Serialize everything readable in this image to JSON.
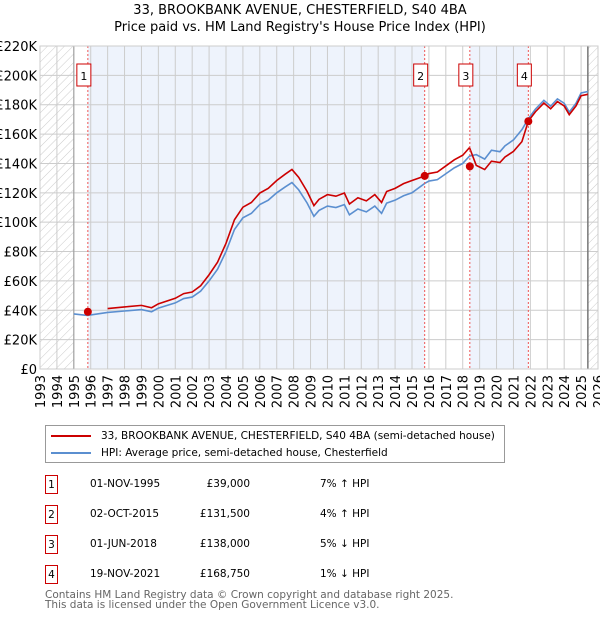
{
  "chart_data": {
    "type": "line",
    "title": "33, BROOKBANK AVENUE, CHESTERFIELD, S40 4BA",
    "subtitle": "Price paid vs. HM Land Registry's House Price Index (HPI)",
    "xlim": [
      1993,
      2026
    ],
    "ylim": [
      0,
      220000
    ],
    "x_ticks": [
      "1993",
      "1994",
      "1995",
      "1996",
      "1997",
      "1998",
      "1999",
      "2000",
      "2001",
      "2002",
      "2003",
      "2004",
      "2005",
      "2006",
      "2007",
      "2008",
      "2009",
      "2010",
      "2011",
      "2012",
      "2013",
      "2014",
      "2015",
      "2016",
      "2017",
      "2018",
      "2019",
      "2020",
      "2021",
      "2022",
      "2023",
      "2024",
      "2025",
      "2026"
    ],
    "y_ticks": [
      "£0",
      "£20K",
      "£40K",
      "£60K",
      "£80K",
      "£100K",
      "£120K",
      "£140K",
      "£160K",
      "£180K",
      "£200K",
      "£220K"
    ],
    "grid": true,
    "data_range": [
      1995.0,
      2025.4
    ],
    "hpi_series": {
      "name": "HPI: Average price, semi-detached house, Chesterfield",
      "color": "#5b8fd0",
      "x": [
        1995.0,
        1995.8,
        1997,
        1998,
        1999,
        1999.6,
        2000,
        2001,
        2001.5,
        2002,
        2002.5,
        2003,
        2003.5,
        2004,
        2004.5,
        2005,
        2005.5,
        2006,
        2006.5,
        2007,
        2007.5,
        2007.9,
        2008.3,
        2008.8,
        2009.2,
        2009.5,
        2010,
        2010.5,
        2011,
        2011.3,
        2011.8,
        2012.3,
        2012.8,
        2013.2,
        2013.5,
        2014,
        2014.5,
        2015,
        2015.75,
        2016,
        2016.5,
        2017,
        2017.5,
        2018,
        2018.4,
        2018.8,
        2019.3,
        2019.7,
        2020.2,
        2020.5,
        2021,
        2021.5,
        2021.88,
        2022.3,
        2022.8,
        2023.2,
        2023.6,
        2024,
        2024.3,
        2024.7,
        2025,
        2025.4
      ],
      "y": [
        37500,
        36500,
        38500,
        39500,
        40500,
        39000,
        41500,
        45000,
        48000,
        49000,
        53000,
        60000,
        68000,
        80000,
        95000,
        103000,
        106000,
        112000,
        115000,
        120000,
        124000,
        127000,
        122000,
        113000,
        104000,
        108000,
        111000,
        110000,
        112000,
        105000,
        109000,
        107000,
        111000,
        106000,
        113000,
        115000,
        118000,
        120000,
        126400,
        128000,
        129000,
        133000,
        137000,
        140000,
        145000,
        146000,
        143000,
        149000,
        148000,
        152000,
        156000,
        163000,
        170500,
        177000,
        183000,
        179000,
        184000,
        181000,
        175000,
        181000,
        188000,
        189000
      ]
    },
    "property_series": {
      "name": "33, BROOKBANK AVENUE, CHESTERFIELD, S40 4BA (semi-detached house)",
      "color": "#cc0000"
    },
    "sales": [
      {
        "n": "1",
        "date": "01-NOV-1995",
        "x": 1995.83,
        "price": 39000,
        "price_label": "£39,000",
        "hpi": "7% ↑ HPI",
        "factor": 1.07
      },
      {
        "n": "2",
        "date": "02-OCT-2015",
        "x": 2015.75,
        "price": 131500,
        "price_label": "£131,500",
        "hpi": "4% ↑ HPI",
        "factor": 1.04
      },
      {
        "n": "3",
        "date": "01-JUN-2018",
        "x": 2018.42,
        "price": 138000,
        "price_label": "£138,000",
        "hpi": "5% ↓ HPI",
        "factor": 0.95
      },
      {
        "n": "4",
        "date": "19-NOV-2021",
        "x": 2021.88,
        "price": 168750,
        "price_label": "£168,750",
        "hpi": "1% ↓ HPI",
        "factor": 0.99
      }
    ]
  },
  "footer": [
    "Contains HM Land Registry data © Crown copyright and database right 2025.",
    "This data is licensed under the Open Government Licence v3.0."
  ]
}
